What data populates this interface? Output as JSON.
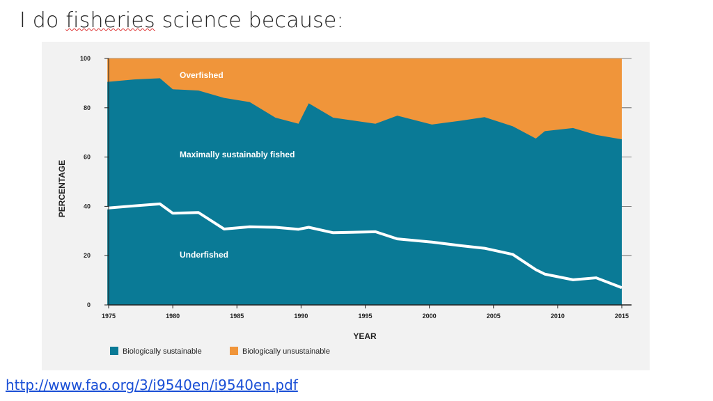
{
  "slide": {
    "title_prefix": "I do ",
    "title_underlined": "fisheries",
    "title_suffix": " science because:",
    "source_url": "http://www.fao.org/3/i9540en/i9540en.pdf"
  },
  "chart_data": {
    "type": "area",
    "xlabel": "YEAR",
    "ylabel": "PERCENTAGE",
    "xlim": [
      1975,
      2015
    ],
    "ylim": [
      0,
      100
    ],
    "x_ticks": [
      1975,
      1980,
      1985,
      1990,
      1995,
      2000,
      2005,
      2010,
      2015
    ],
    "y_ticks": [
      0,
      20,
      40,
      60,
      80,
      100
    ],
    "grid": "horizontal",
    "colors": {
      "sustainable": "#0a7a96",
      "unsustainable": "#f0953a",
      "underfished_line": "#ffffff"
    },
    "area_labels": {
      "overfished": "Overfished",
      "maximally": "Maximally sustainably fished",
      "underfished": "Underfished"
    },
    "legend": [
      {
        "label": "Biologically sustainable",
        "color": "#0a7a96"
      },
      {
        "label": "Biologically unsustainable",
        "color": "#f0953a"
      }
    ],
    "legend_position": "bottom",
    "series": [
      {
        "name": "Biologically sustainable",
        "x": [
          1974.9,
          1977,
          1979,
          1980,
          1982,
          1984,
          1986,
          1988,
          1989.8,
          1990.6,
          1992.5,
          1995.8,
          1997.5,
          2000.2,
          2002.5,
          2004.3,
          2006.5,
          2008.3,
          2009,
          2011.2,
          2013,
          2015
        ],
        "values": [
          90.5,
          91.5,
          92.0,
          87.5,
          87.0,
          84.0,
          82.3,
          76.0,
          73.5,
          81.8,
          76.0,
          73.5,
          76.8,
          73.2,
          74.8,
          76.2,
          72.5,
          67.5,
          70.5,
          71.8,
          69.0,
          67.2
        ]
      },
      {
        "name": "Underfished",
        "x": [
          1974.9,
          1977,
          1979,
          1980,
          1982,
          1984,
          1986,
          1988,
          1989.8,
          1990.6,
          1992.5,
          1995.8,
          1997.5,
          2000.2,
          2002.5,
          2004.3,
          2006.5,
          2008.3,
          2009,
          2011.2,
          2013,
          2015
        ],
        "values": [
          39.3,
          40.2,
          41.0,
          37.2,
          37.5,
          30.8,
          31.7,
          31.5,
          30.7,
          31.5,
          29.3,
          29.7,
          26.8,
          25.5,
          24.0,
          23.0,
          20.5,
          14.3,
          12.5,
          10.2,
          11.0,
          7.0
        ]
      }
    ]
  }
}
